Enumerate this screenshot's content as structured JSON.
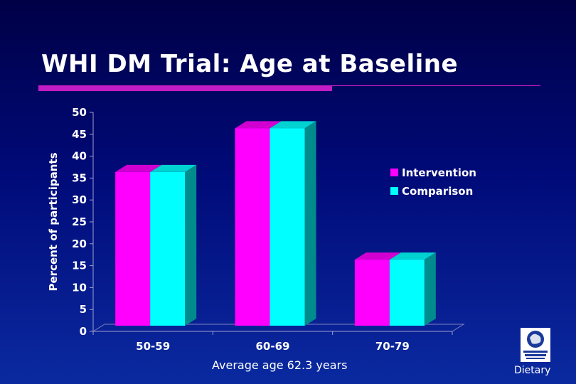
{
  "slide": {
    "title": "WHI DM Trial:  Age at Baseline",
    "footer_note": "Average age 62.3 years",
    "logo_text": "Dietary"
  },
  "colors": {
    "intervention": "#ff00ff",
    "comparison": "#00ffff",
    "accent_rule": "#c21cc4"
  },
  "chart_data": {
    "type": "bar",
    "title": "",
    "xlabel": "",
    "ylabel": "Percent of participants",
    "ylim": [
      0,
      50
    ],
    "yticks": [
      0,
      5,
      10,
      15,
      20,
      25,
      30,
      35,
      40,
      45,
      50
    ],
    "categories": [
      "50-59",
      "60-69",
      "70-79"
    ],
    "series": [
      {
        "name": "Intervention",
        "values": [
          38,
          48,
          18
        ]
      },
      {
        "name": "Comparison",
        "values": [
          38,
          48,
          18
        ]
      }
    ],
    "legend": "right"
  }
}
